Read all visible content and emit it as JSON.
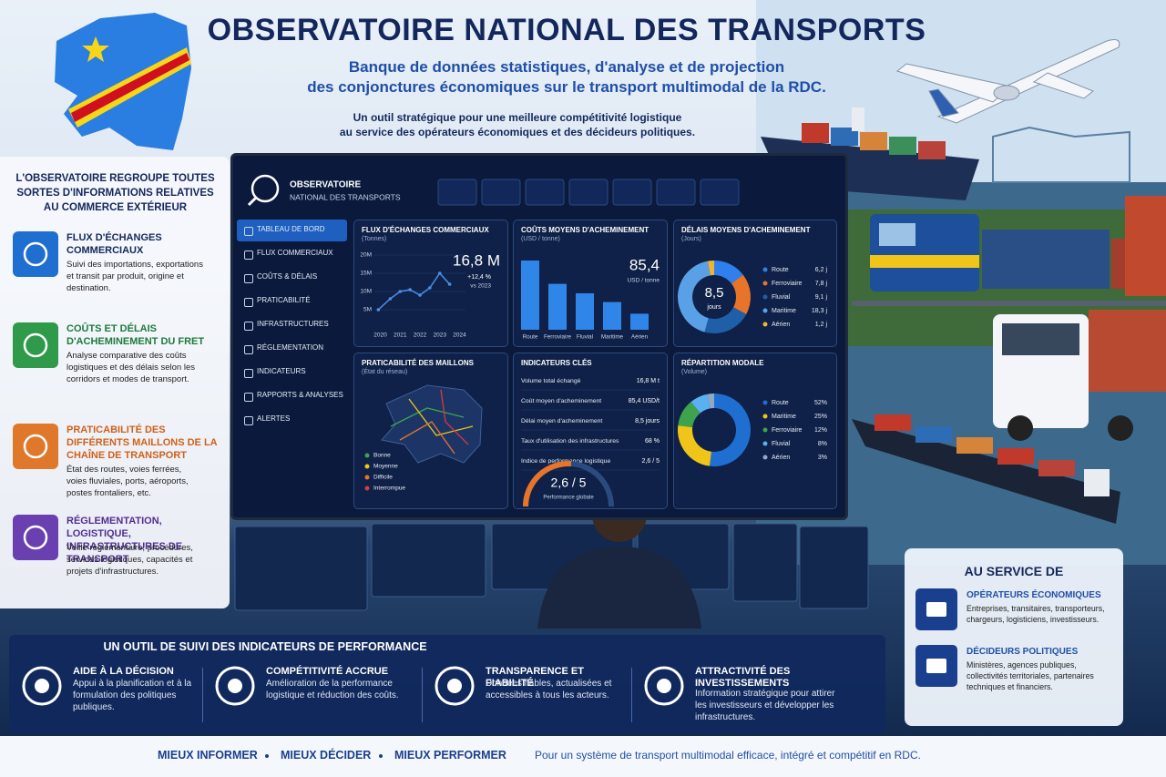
{
  "header": {
    "title": "OBSERVATOIRE NATIONAL DES TRANSPORTS",
    "subtitle": [
      "Banque de données statistiques, d'analyse et de projection",
      "des conjonctures économiques sur le transport multimodal de la RDC."
    ],
    "tagline": [
      "Un outil stratégique pour une meilleure compétitivité logistique",
      "au service des opérateurs économiques et des décideurs politiques."
    ]
  },
  "left_panel": {
    "intro": "L'OBSERVATOIRE REGROUPE TOUTES SORTES D'INFORMATIONS RELATIVES AU COMMERCE EXTÉRIEUR",
    "items": [
      {
        "title": "FLUX D'ÉCHANGES COMMERCIAUX",
        "text": "Suivi des importations, exportations et transit par produit, origine et destination."
      },
      {
        "title": "COÛTS ET DÉLAIS D'ACHEMINEMENT DU FRET",
        "text": "Analyse comparative des coûts logistiques et des délais selon les corridors et modes de transport."
      },
      {
        "title": "PRATICABILITÉ DES DIFFÉRENTS MAILLONS DE LA CHAÎNE DE TRANSPORT",
        "text": "État des routes, voies ferrées, voies fluviales, ports, aéroports, postes frontaliers, etc."
      },
      {
        "title": "RÉGLEMENTATION, LOGISTIQUE, INFRASTRUCTURES DE TRANSPORT",
        "text": "Veille réglementaire, procédures, services logistiques, capacités et projets d'infrastructures."
      }
    ]
  },
  "dashboard": {
    "brand": [
      "OBSERVATOIRE",
      "NATIONAL DES TRANSPORTS"
    ],
    "nav": [
      "TABLEAU DE BORD",
      "FLUX COMMERCIAUX",
      "COÛTS & DÉLAIS",
      "PRATICABILITÉ",
      "INFRASTRUCTURES",
      "RÉGLEMENTATION",
      "INDICATEURS",
      "RAPPORTS & ANALYSES",
      "ALERTES"
    ],
    "flux": {
      "type": "line",
      "title": "FLUX D'ÉCHANGES COMMERCIAUX",
      "subtitle": "(Tonnes)",
      "value": "16,8 M",
      "change": "+12,4 %",
      "change_note": "vs 2023",
      "x": [
        2019.9,
        2020.5,
        2021,
        2021.5,
        2022,
        2022.5,
        2023,
        2023.5
      ],
      "values": [
        5,
        8,
        10,
        10.5,
        9,
        11,
        15,
        12
      ],
      "color": "#4a8fe8",
      "xlim": [
        2019.7,
        2024.3
      ],
      "xticks": [
        2020,
        2021,
        2022,
        2023,
        2024
      ],
      "ylim": [
        0,
        20
      ],
      "yticks": [
        {
          "value": 5,
          "label": "5M"
        },
        {
          "value": 10,
          "label": "10M"
        },
        {
          "value": 15,
          "label": "15M"
        },
        {
          "value": 20,
          "label": "20M"
        }
      ],
      "grid": true
    },
    "couts": {
      "type": "bar",
      "title": "COÛTS MOYENS D'ACHEMINEMENT",
      "subtitle": "(USD / tonne)",
      "value": "85,4",
      "unit": "USD / tonne",
      "categories": [
        "Route",
        "Ferroviaire",
        "Fluvial",
        "Maritime",
        "Aérien"
      ],
      "values": [
        95,
        63,
        50,
        38,
        22
      ],
      "color": "#2f86e8"
    },
    "delais": {
      "type": "pie",
      "title": "DÉLAIS MOYENS D'ACHEMINEMENT",
      "subtitle": "(Jours)",
      "center": "8,5",
      "center_unit": "jours",
      "categories": [
        "Route",
        "Ferroviaire",
        "Fluvial",
        "Maritime",
        "Aérien"
      ],
      "values": [
        6.2,
        7.8,
        9.1,
        18.3,
        1.2
      ],
      "value_labels": [
        "6,2 j",
        "7,8 j",
        "9,1 j",
        "18,3 j",
        "1,2 j"
      ],
      "colors": [
        "#2f80ed",
        "#e8742a",
        "#1f5fa8",
        "#5aa0e6",
        "#f2b233"
      ]
    },
    "praticabilite": {
      "title": "PRATICABILITÉ DES MAILLONS",
      "subtitle": "(État du réseau)",
      "legend": [
        "Bonne",
        "Moyenne",
        "Difficile",
        "Interrompue"
      ],
      "colors": [
        "#3fa34d",
        "#f0c419",
        "#e8742a",
        "#d93a3a"
      ]
    },
    "indicateurs": {
      "title": "INDICATEURS CLÉS",
      "rows": [
        {
          "label": "Volume total échangé",
          "value": "16,8 M t"
        },
        {
          "label": "Coût moyen d'acheminement",
          "value": "85,4 USD/t"
        },
        {
          "label": "Délai moyen d'acheminement",
          "value": "8,5 jours"
        },
        {
          "label": "Taux d'utilisation des infrastructures",
          "value": "68 %"
        },
        {
          "label": "Indice de performance logistique",
          "value": "2,6 / 5"
        }
      ],
      "gauge": {
        "value": 2.6,
        "max": 5,
        "label": "2,6 / 5",
        "caption": "Performance globale"
      }
    },
    "repartition": {
      "type": "pie",
      "title": "RÉPARTITION MODALE",
      "subtitle": "(Volume)",
      "categories": [
        "Route",
        "Maritime",
        "Ferroviaire",
        "Fluvial",
        "Aérien"
      ],
      "values": [
        52,
        25,
        12,
        8,
        3
      ],
      "value_labels": [
        "52%",
        "25%",
        "12%",
        "8%",
        "3%"
      ],
      "colors": [
        "#1f6fd1",
        "#f0c419",
        "#3fa34d",
        "#5ab0f0",
        "#8fa8c8"
      ]
    }
  },
  "right_panel": {
    "title": "AU SERVICE DE",
    "items": [
      {
        "title": "OPÉRATEURS ÉCONOMIQUES",
        "text": "Entreprises, transitaires, transporteurs, chargeurs, logisticiens, investisseurs."
      },
      {
        "title": "DÉCIDEURS POLITIQUES",
        "text": "Ministères, agences publiques, collectivités territoriales, partenaires techniques et financiers."
      }
    ]
  },
  "bottom_band": {
    "title": "UN OUTIL DE SUIVI DES INDICATEURS DE PERFORMANCE",
    "items": [
      {
        "title": "AIDE À LA DÉCISION",
        "text": "Appui à la planification et à la formulation des politiques publiques."
      },
      {
        "title": "COMPÉTITIVITÉ ACCRUE",
        "text": "Amélioration de la performance logistique et réduction des coûts."
      },
      {
        "title": "TRANSPARENCE ET FIABILITÉ",
        "text": "Données fiables, actualisées et accessibles à tous les acteurs."
      },
      {
        "title": "ATTRACTIVITÉ DES INVESTISSEMENTS",
        "text": "Information stratégique pour attirer les investisseurs et développer les infrastructures."
      }
    ]
  },
  "footer": {
    "slogans": [
      "MIEUX INFORMER",
      "MIEUX DÉCIDER",
      "MIEUX PERFORMER"
    ],
    "tagline": "Pour un système de transport multimodal efficace, intégré et compétitif en RDC."
  }
}
